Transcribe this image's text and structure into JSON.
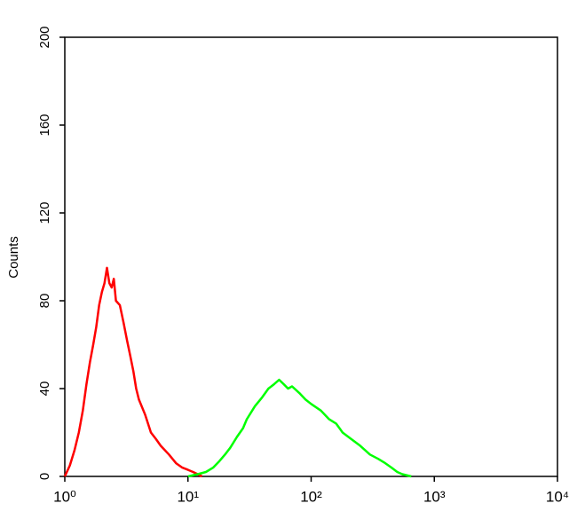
{
  "chart_data": {
    "type": "line",
    "ylabel": "Counts",
    "xscale": "log",
    "xlim": [
      1,
      10000
    ],
    "ylim": [
      0,
      200
    ],
    "xticks": [
      {
        "value": 1,
        "label": "10⁰"
      },
      {
        "value": 10,
        "label": "10¹"
      },
      {
        "value": 100,
        "label": "10²"
      },
      {
        "value": 1000,
        "label": "10³"
      },
      {
        "value": 10000,
        "label": "10⁴"
      }
    ],
    "yticks": [
      0,
      40,
      80,
      120,
      160,
      200
    ],
    "series": [
      {
        "color": "#ff0000",
        "x": [
          1.0,
          1.1,
          1.2,
          1.3,
          1.4,
          1.5,
          1.6,
          1.7,
          1.8,
          1.9,
          2.0,
          2.1,
          2.2,
          2.3,
          2.4,
          2.5,
          2.6,
          2.8,
          3.0,
          3.2,
          3.4,
          3.6,
          3.8,
          4.0,
          4.5,
          5.0,
          5.5,
          6.0,
          7.0,
          8.0,
          9.0,
          10,
          11,
          12,
          13
        ],
        "values": [
          0,
          5,
          12,
          20,
          30,
          42,
          52,
          60,
          68,
          78,
          84,
          88,
          95,
          88,
          86,
          90,
          80,
          78,
          70,
          62,
          55,
          48,
          40,
          35,
          28,
          20,
          17,
          14,
          10,
          6,
          4,
          3,
          2,
          1,
          0
        ]
      },
      {
        "color": "#00ff00",
        "x": [
          10,
          12,
          14,
          16,
          18,
          20,
          22,
          25,
          28,
          30,
          35,
          40,
          45,
          50,
          55,
          60,
          65,
          70,
          80,
          90,
          100,
          120,
          140,
          160,
          180,
          200,
          250,
          300,
          350,
          400,
          450,
          500,
          550,
          650
        ],
        "values": [
          0,
          1,
          2,
          4,
          7,
          10,
          13,
          18,
          22,
          26,
          32,
          36,
          40,
          42,
          44,
          42,
          40,
          41,
          38,
          35,
          33,
          30,
          26,
          24,
          20,
          18,
          14,
          10,
          8,
          6,
          4,
          2,
          1,
          0
        ]
      }
    ]
  }
}
